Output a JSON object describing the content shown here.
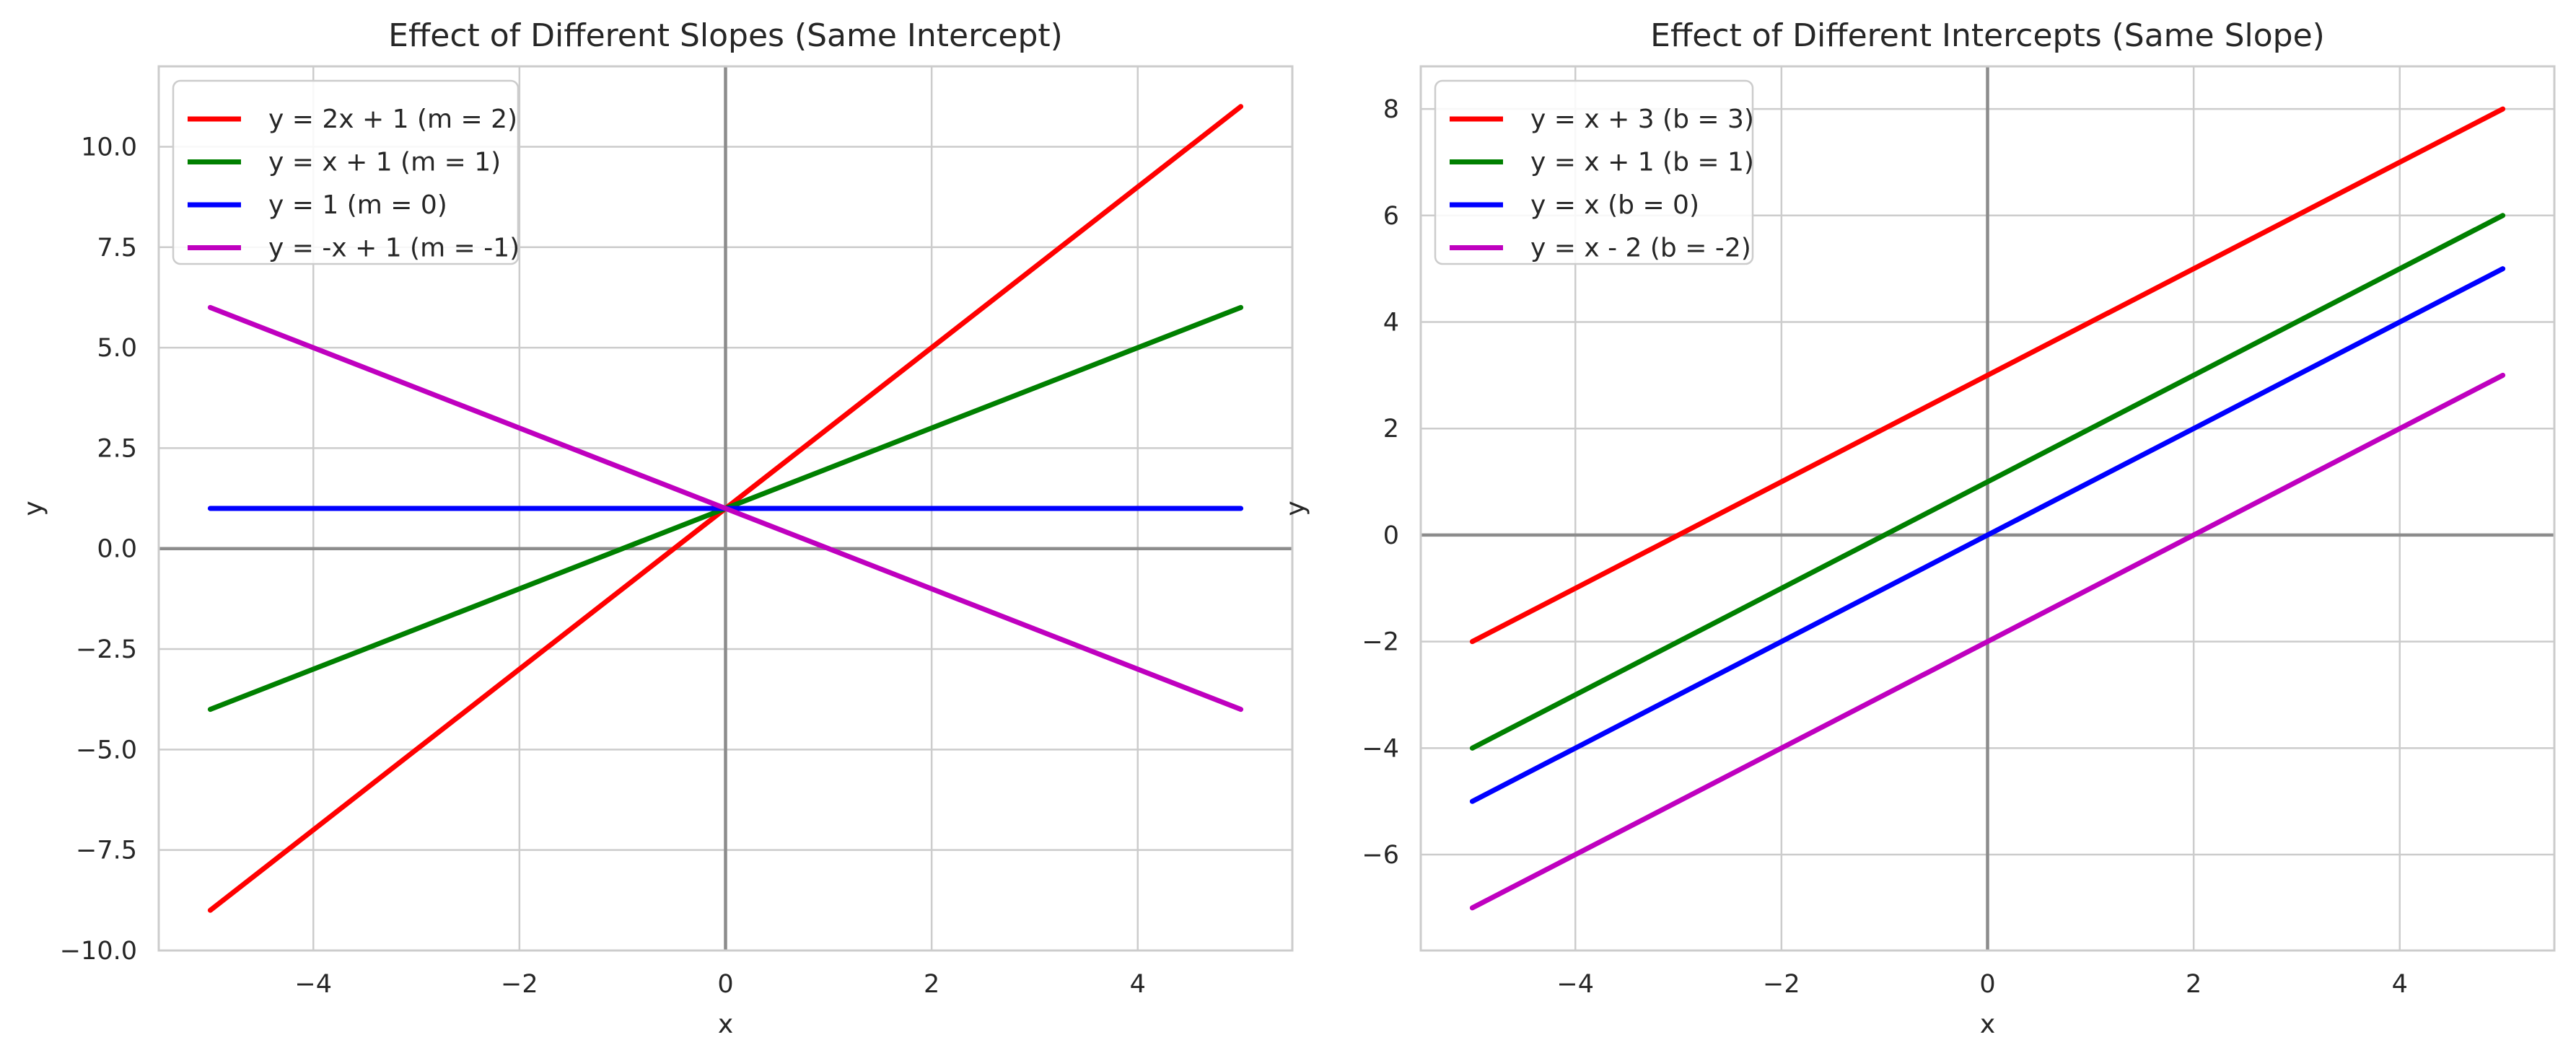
{
  "chart_data": [
    {
      "type": "line",
      "title": "Effect of Different Slopes (Same Intercept)",
      "xlabel": "x",
      "ylabel": "y",
      "xlim": [
        -5.5,
        5.5
      ],
      "ylim": [
        -10,
        12
      ],
      "xticks": [
        -4,
        -2,
        0,
        2,
        4
      ],
      "xtick_labels": [
        "−4",
        "−2",
        "0",
        "2",
        "4"
      ],
      "yticks": [
        -10,
        -7.5,
        -5,
        -2.5,
        0,
        2.5,
        5,
        7.5,
        10
      ],
      "ytick_labels": [
        "−10.0",
        "−7.5",
        "−5.0",
        "−2.5",
        "0.0",
        "2.5",
        "5.0",
        "7.5",
        "10.0"
      ],
      "grid": true,
      "legend_position": "top-left",
      "series": [
        {
          "name": "y = 2x + 1 (m = 2)",
          "color": "#ff0000",
          "x": [
            -5,
            5
          ],
          "y": [
            -9,
            11
          ]
        },
        {
          "name": "y = x + 1 (m = 1)",
          "color": "#008000",
          "x": [
            -5,
            5
          ],
          "y": [
            -4,
            6
          ]
        },
        {
          "name": "y = 1 (m = 0)",
          "color": "#0000ff",
          "x": [
            -5,
            5
          ],
          "y": [
            1,
            1
          ]
        },
        {
          "name": "y = -x + 1 (m = -1)",
          "color": "#bf00bf",
          "x": [
            -5,
            5
          ],
          "y": [
            6,
            -4
          ]
        }
      ]
    },
    {
      "type": "line",
      "title": "Effect of Different Intercepts (Same Slope)",
      "xlabel": "x",
      "ylabel": "y",
      "xlim": [
        -5.5,
        5.5
      ],
      "ylim": [
        -7.8,
        8.8
      ],
      "xticks": [
        -4,
        -2,
        0,
        2,
        4
      ],
      "xtick_labels": [
        "−4",
        "−2",
        "0",
        "2",
        "4"
      ],
      "yticks": [
        -6,
        -4,
        -2,
        0,
        2,
        4,
        6,
        8
      ],
      "ytick_labels": [
        "−6",
        "−4",
        "−2",
        "0",
        "2",
        "4",
        "6",
        "8"
      ],
      "grid": true,
      "legend_position": "top-left",
      "series": [
        {
          "name": "y = x + 3 (b = 3)",
          "color": "#ff0000",
          "x": [
            -5,
            5
          ],
          "y": [
            -2,
            8
          ]
        },
        {
          "name": "y = x + 1 (b = 1)",
          "color": "#008000",
          "x": [
            -5,
            5
          ],
          "y": [
            -4,
            6
          ]
        },
        {
          "name": "y = x (b = 0)",
          "color": "#0000ff",
          "x": [
            -5,
            5
          ],
          "y": [
            -5,
            5
          ]
        },
        {
          "name": "y = x - 2 (b = -2)",
          "color": "#bf00bf",
          "x": [
            -5,
            5
          ],
          "y": [
            -7,
            3
          ]
        }
      ]
    }
  ]
}
